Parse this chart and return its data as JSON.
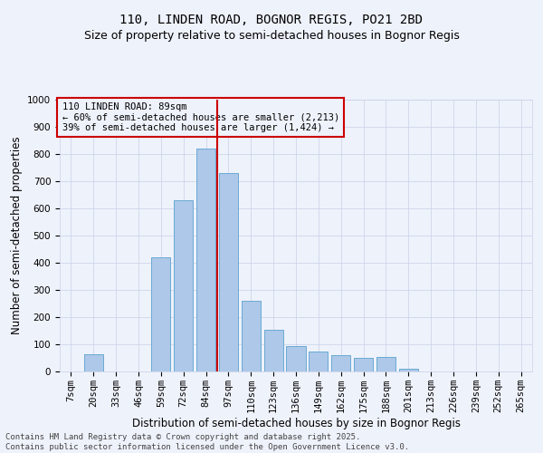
{
  "title_line1": "110, LINDEN ROAD, BOGNOR REGIS, PO21 2BD",
  "title_line2": "Size of property relative to semi-detached houses in Bognor Regis",
  "xlabel": "Distribution of semi-detached houses by size in Bognor Regis",
  "ylabel": "Number of semi-detached properties",
  "footer_line1": "Contains HM Land Registry data © Crown copyright and database right 2025.",
  "footer_line2": "Contains public sector information licensed under the Open Government Licence v3.0.",
  "annotation_title": "110 LINDEN ROAD: 89sqm",
  "annotation_line1": "← 60% of semi-detached houses are smaller (2,213)",
  "annotation_line2": "39% of semi-detached houses are larger (1,424) →",
  "bar_categories": [
    "7sqm",
    "20sqm",
    "33sqm",
    "46sqm",
    "59sqm",
    "72sqm",
    "84sqm",
    "97sqm",
    "110sqm",
    "123sqm",
    "136sqm",
    "149sqm",
    "162sqm",
    "175sqm",
    "188sqm",
    "201sqm",
    "213sqm",
    "226sqm",
    "239sqm",
    "252sqm",
    "265sqm"
  ],
  "bar_values": [
    0,
    65,
    0,
    0,
    420,
    630,
    820,
    730,
    260,
    155,
    95,
    75,
    60,
    50,
    55,
    10,
    0,
    0,
    0,
    0,
    0
  ],
  "ylim": [
    0,
    1000
  ],
  "yticks": [
    0,
    100,
    200,
    300,
    400,
    500,
    600,
    700,
    800,
    900,
    1000
  ],
  "bar_color": "#adc8e8",
  "bar_edge_color": "#6aaad4",
  "vline_color": "#cc0000",
  "vline_x_index": 6.5,
  "bg_color": "#eef2fb",
  "grid_color": "#c8d0e8",
  "annotation_box_color": "#cc0000",
  "title_fontsize": 10,
  "subtitle_fontsize": 9,
  "axis_label_fontsize": 8.5,
  "tick_fontsize": 7.5,
  "annotation_fontsize": 7.5,
  "footer_fontsize": 6.5
}
